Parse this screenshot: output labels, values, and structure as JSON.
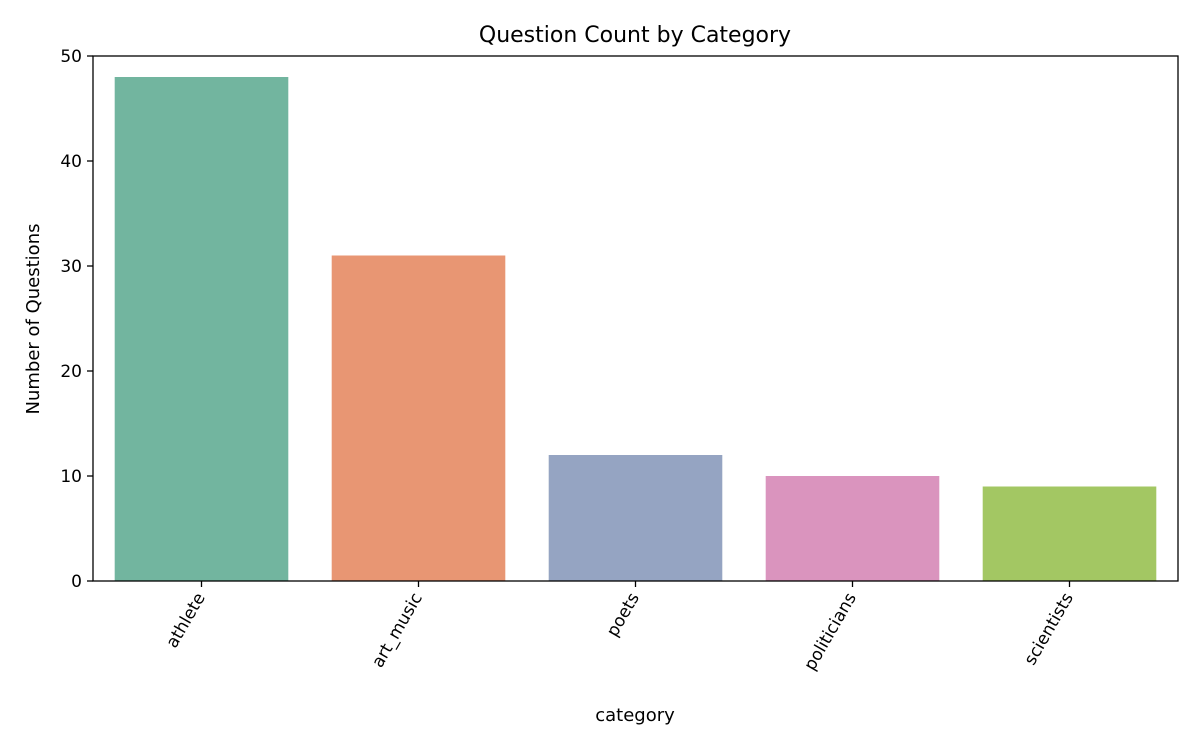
{
  "chart_data": {
    "type": "bar",
    "title": "Question Count by Category",
    "xlabel": "category",
    "ylabel": "Number of Questions",
    "categories": [
      "athlete",
      "art_music",
      "poets",
      "politicians",
      "scientists"
    ],
    "values": [
      48,
      31,
      12,
      10,
      9
    ],
    "colors": [
      "#72b59f",
      "#e89673",
      "#95a4c2",
      "#da94be",
      "#a3c763"
    ],
    "ylim": [
      0,
      50
    ],
    "yticks": [
      0,
      10,
      20,
      30,
      40,
      50
    ],
    "grid": false,
    "legend": "none"
  }
}
